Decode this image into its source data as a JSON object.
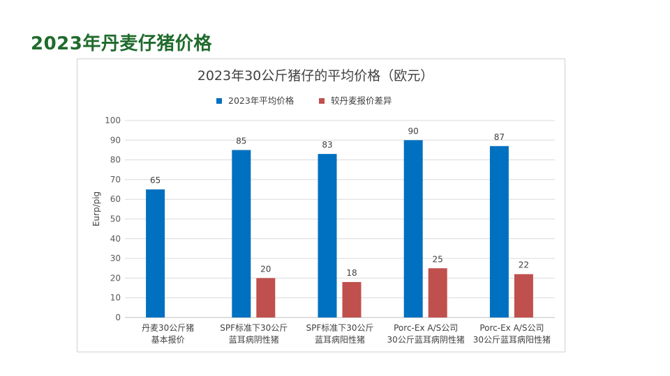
{
  "slide": {
    "title": "2023年丹麦仔猪价格"
  },
  "chart_data": {
    "type": "bar",
    "title": "2023年30公斤猪仔的平均价格（欧元）",
    "ylabel": "Eurp/pig",
    "xlabel": "",
    "ylim": [
      0,
      100
    ],
    "yticks": [
      0,
      10,
      20,
      30,
      40,
      50,
      60,
      70,
      80,
      90,
      100
    ],
    "grid": true,
    "legend_position": "top",
    "categories": [
      [
        "丹麦30公斤猪",
        "基本报价"
      ],
      [
        "SPF标准下30公斤",
        "蓝耳病阴性猪"
      ],
      [
        "SPF标准下30公斤",
        "蓝耳病阳性猪"
      ],
      [
        "Porc-Ex A/S公司",
        "30公斤蓝耳病阴性猪"
      ],
      [
        "Porc-Ex A/S公司",
        "30公斤蓝耳病阳性猪"
      ]
    ],
    "series": [
      {
        "name": "2023年平均价格",
        "color": "#0070c0",
        "values": [
          65,
          85,
          83,
          90,
          87
        ]
      },
      {
        "name": "较丹麦报价差异",
        "color": "#c0504d",
        "values": [
          null,
          20,
          18,
          25,
          22
        ]
      }
    ]
  }
}
